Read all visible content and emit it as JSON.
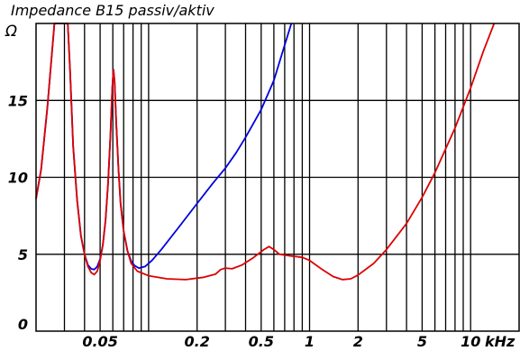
{
  "chart_data": {
    "type": "line",
    "title": "Impedance B15 passiv/aktiv",
    "y_unit_label": "Ω",
    "x_unit_label": "kHz",
    "x_scale": "log",
    "xlim": [
      0.02,
      20
    ],
    "ylim": [
      0,
      20
    ],
    "grid": true,
    "y_ticks": [
      {
        "value": 0,
        "label": "0"
      },
      {
        "value": 5,
        "label": "5"
      },
      {
        "value": 10,
        "label": "10"
      },
      {
        "value": 15,
        "label": "15"
      }
    ],
    "x_ticks": [
      {
        "value": 0.05,
        "label": "0.05"
      },
      {
        "value": 0.2,
        "label": "0.2"
      },
      {
        "value": 0.5,
        "label": "0.5"
      },
      {
        "value": 1,
        "label": "1"
      },
      {
        "value": 2,
        "label": "2"
      },
      {
        "value": 5,
        "label": "5"
      },
      {
        "value": 10,
        "label": "10"
      }
    ],
    "vertical_gridlines_khz": [
      0.03,
      0.04,
      0.05,
      0.06,
      0.07,
      0.08,
      0.09,
      0.1,
      0.2,
      0.3,
      0.4,
      0.5,
      0.6,
      0.7,
      0.8,
      0.9,
      1,
      2,
      3,
      4,
      5,
      6,
      7,
      8,
      9,
      10
    ],
    "series": [
      {
        "color": "#0000dd",
        "points": [
          [
            0.02,
            8.6
          ],
          [
            0.0215,
            10.5
          ],
          [
            0.0235,
            14.5
          ],
          [
            0.026,
            20
          ],
          [
            0.0315,
            20
          ],
          [
            0.0325,
            17
          ],
          [
            0.034,
            12
          ],
          [
            0.036,
            8.5
          ],
          [
            0.038,
            6.2
          ],
          [
            0.04,
            5
          ],
          [
            0.042,
            4.3
          ],
          [
            0.044,
            4.05
          ],
          [
            0.046,
            4.0
          ],
          [
            0.048,
            4.2
          ],
          [
            0.05,
            4.7
          ],
          [
            0.052,
            5.6
          ],
          [
            0.054,
            7.2
          ],
          [
            0.056,
            9.6
          ],
          [
            0.058,
            12.8
          ],
          [
            0.0595,
            15.8
          ],
          [
            0.0605,
            17.0
          ],
          [
            0.0615,
            16.2
          ],
          [
            0.063,
            13.5
          ],
          [
            0.065,
            10.5
          ],
          [
            0.067,
            8.3
          ],
          [
            0.07,
            6.5
          ],
          [
            0.074,
            5.2
          ],
          [
            0.078,
            4.55
          ],
          [
            0.082,
            4.25
          ],
          [
            0.087,
            4.1
          ],
          [
            0.095,
            4.2
          ],
          [
            0.105,
            4.6
          ],
          [
            0.12,
            5.3
          ],
          [
            0.15,
            6.6
          ],
          [
            0.2,
            8.3
          ],
          [
            0.25,
            9.6
          ],
          [
            0.3,
            10.6
          ],
          [
            0.35,
            11.6
          ],
          [
            0.4,
            12.6
          ],
          [
            0.5,
            14.4
          ],
          [
            0.6,
            16.3
          ],
          [
            0.7,
            18.6
          ],
          [
            0.77,
            20
          ]
        ]
      },
      {
        "color": "#dd0000",
        "points": [
          [
            0.02,
            8.6
          ],
          [
            0.0215,
            10.5
          ],
          [
            0.0235,
            14.5
          ],
          [
            0.026,
            20
          ],
          [
            0.0315,
            20
          ],
          [
            0.0325,
            17
          ],
          [
            0.034,
            12
          ],
          [
            0.036,
            8.5
          ],
          [
            0.038,
            6.2
          ],
          [
            0.04,
            5
          ],
          [
            0.042,
            4.2
          ],
          [
            0.044,
            3.8
          ],
          [
            0.046,
            3.68
          ],
          [
            0.048,
            3.9
          ],
          [
            0.05,
            4.6
          ],
          [
            0.052,
            5.6
          ],
          [
            0.054,
            7.2
          ],
          [
            0.056,
            9.6
          ],
          [
            0.058,
            12.8
          ],
          [
            0.0595,
            15.8
          ],
          [
            0.0605,
            17.0
          ],
          [
            0.0615,
            16.2
          ],
          [
            0.063,
            13.5
          ],
          [
            0.065,
            10.5
          ],
          [
            0.067,
            8.3
          ],
          [
            0.07,
            6.5
          ],
          [
            0.074,
            5.2
          ],
          [
            0.078,
            4.4
          ],
          [
            0.085,
            3.9
          ],
          [
            0.1,
            3.6
          ],
          [
            0.13,
            3.4
          ],
          [
            0.17,
            3.35
          ],
          [
            0.22,
            3.5
          ],
          [
            0.26,
            3.7
          ],
          [
            0.28,
            4.0
          ],
          [
            0.3,
            4.1
          ],
          [
            0.33,
            4.05
          ],
          [
            0.38,
            4.3
          ],
          [
            0.45,
            4.8
          ],
          [
            0.52,
            5.3
          ],
          [
            0.56,
            5.5
          ],
          [
            0.6,
            5.3
          ],
          [
            0.65,
            5.0
          ],
          [
            0.75,
            4.9
          ],
          [
            0.9,
            4.8
          ],
          [
            1.0,
            4.6
          ],
          [
            1.2,
            4.0
          ],
          [
            1.4,
            3.55
          ],
          [
            1.6,
            3.35
          ],
          [
            1.8,
            3.4
          ],
          [
            2.0,
            3.65
          ],
          [
            2.5,
            4.4
          ],
          [
            3.0,
            5.3
          ],
          [
            4.0,
            7.0
          ],
          [
            5.0,
            8.7
          ],
          [
            6.0,
            10.3
          ],
          [
            8.0,
            13.2
          ],
          [
            10.0,
            15.8
          ],
          [
            12.0,
            18.2
          ],
          [
            14.0,
            20
          ]
        ]
      }
    ]
  }
}
